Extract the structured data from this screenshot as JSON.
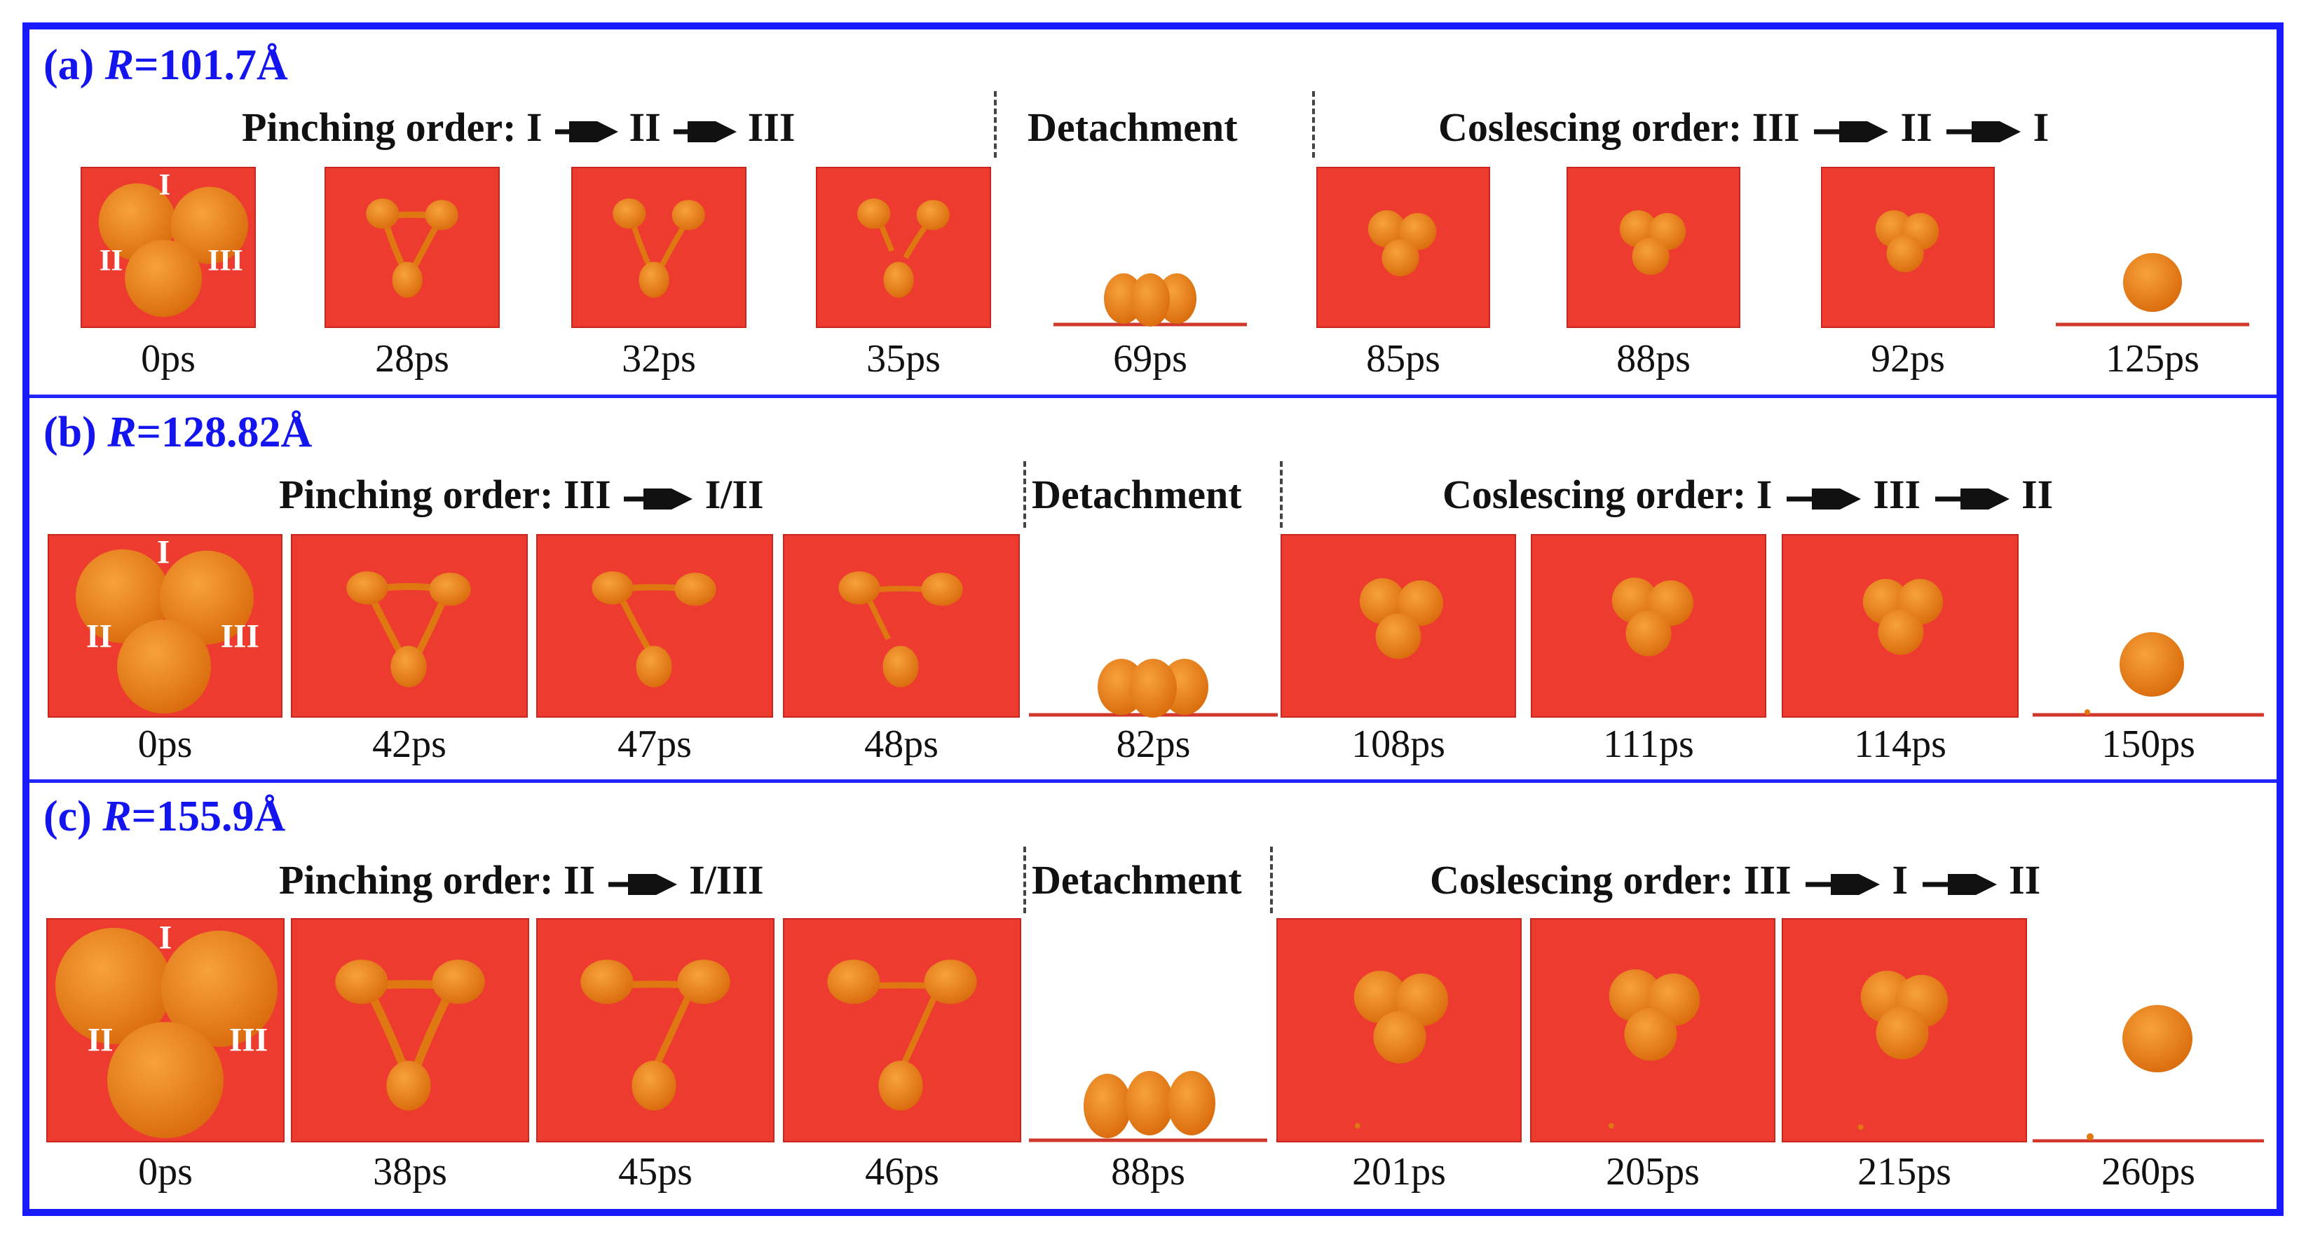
{
  "colors": {
    "frame": "#1a1aff",
    "title": "#1414ee",
    "substrate": "#ee3b30",
    "drop": "#ef8a1a"
  },
  "rows": [
    {
      "label": "(a) ",
      "r_symbol": "R",
      "r_value": "=101.7Å",
      "pinching": {
        "prefix": "Pinching order: I",
        "mid": "II",
        "end": "III"
      },
      "detachment": "Detachment",
      "coalescing": {
        "prefix": "Coslescing order: III",
        "mid": "II",
        "end": "I"
      },
      "roman": [
        "I",
        "II",
        "III"
      ],
      "times": [
        "0ps",
        "28ps",
        "32ps",
        "35ps",
        "69ps",
        "85ps",
        "88ps",
        "92ps",
        "125ps"
      ]
    },
    {
      "label": "(b) ",
      "r_symbol": "R",
      "r_value": "=128.82Å",
      "pinching": {
        "prefix": "Pinching order: III",
        "mid": "I/II",
        "end": ""
      },
      "detachment": "Detachment",
      "coalescing": {
        "prefix": "Coslescing order: I",
        "mid": "III",
        "end": "II"
      },
      "roman": [
        "I",
        "II",
        "III"
      ],
      "times": [
        "0ps",
        "42ps",
        "47ps",
        "48ps",
        "82ps",
        "108ps",
        "111ps",
        "114ps",
        "150ps"
      ]
    },
    {
      "label": "(c) ",
      "r_symbol": "R",
      "r_value": "=155.9Å",
      "pinching": {
        "prefix": "Pinching order: II",
        "mid": "I/III",
        "end": ""
      },
      "detachment": "Detachment",
      "coalescing": {
        "prefix": "Coslescing order: III",
        "mid": "I",
        "end": "II"
      },
      "roman": [
        "I",
        "II",
        "III"
      ],
      "times": [
        "0ps",
        "38ps",
        "45ps",
        "46ps",
        "88ps",
        "201ps",
        "205ps",
        "215ps",
        "260ps"
      ]
    }
  ]
}
